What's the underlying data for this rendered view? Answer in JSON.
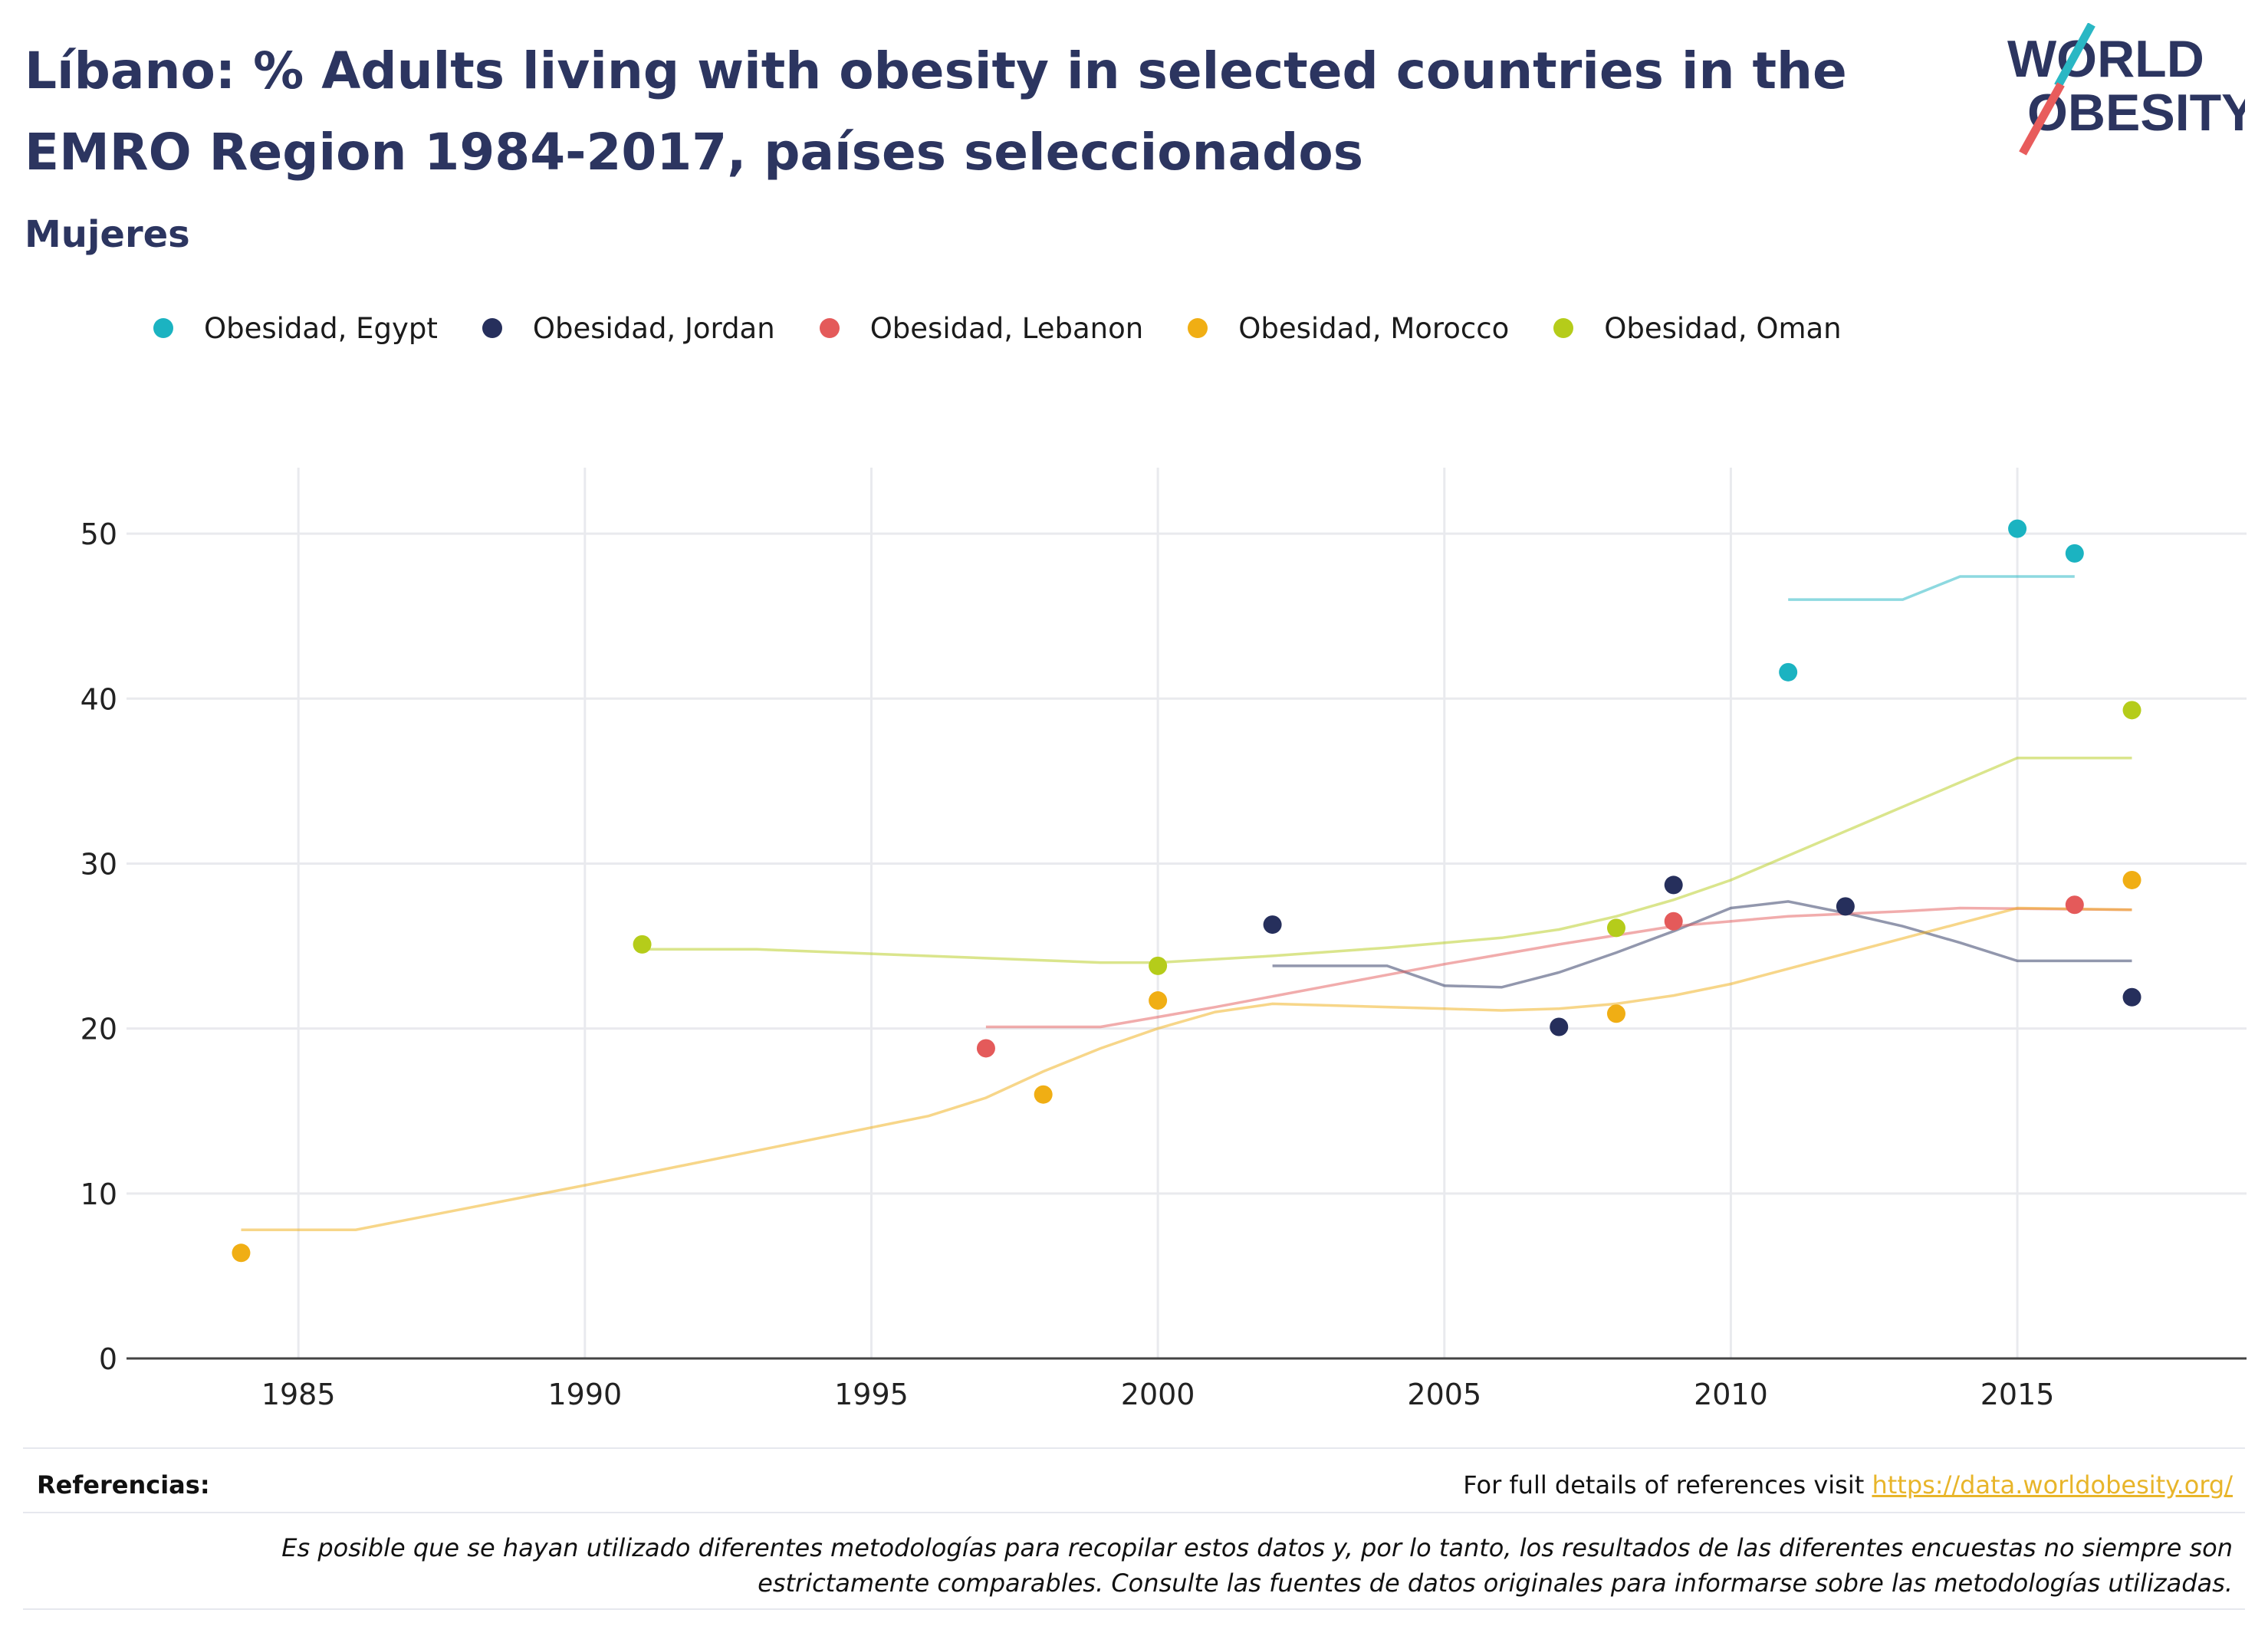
{
  "header": {
    "title": "Líbano: % Adults living with obesity in selected countries in the EMRO Region 1984-2017, países seleccionados",
    "subtitle": "Mujeres"
  },
  "logo": {
    "line1": "WORLD",
    "line2": "OBESITY",
    "slash_colors": [
      "#2ab7c4",
      "#e85c5c"
    ]
  },
  "footer": {
    "references_label": "Referencias:",
    "references_text": "For full details of references visit",
    "references_link": "https://data.worldobesity.org/",
    "note": "Es posible que se hayan utilizado diferentes metodologías para recopilar estos datos y, por lo tanto, los resultados de las diferentes encuestas no siempre son estrictamente comparables. Consulte las fuentes de datos originales para informarse sobre las metodologías utilizadas."
  },
  "chart_data": {
    "type": "scatter",
    "legend_position": "top",
    "grid": true,
    "xlim": [
      1982,
      2019
    ],
    "ylim": [
      0,
      54
    ],
    "x_ticks": [
      1985,
      1990,
      1995,
      2000,
      2005,
      2010,
      2015
    ],
    "y_ticks": [
      0,
      10,
      20,
      30,
      40,
      50
    ],
    "series": [
      {
        "name": "Obesidad, Egypt",
        "color": "#1bb3c1",
        "points": [
          [
            2011,
            41.6
          ],
          [
            2015,
            50.3
          ],
          [
            2016,
            48.8
          ]
        ],
        "trend": [
          [
            2011,
            46.0
          ],
          [
            2013,
            46.0
          ],
          [
            2014,
            47.4
          ],
          [
            2016,
            47.4
          ]
        ]
      },
      {
        "name": "Obesidad, Jordan",
        "color": "#262f5c",
        "points": [
          [
            2002,
            26.3
          ],
          [
            2007,
            20.1
          ],
          [
            2009,
            28.7
          ],
          [
            2012,
            27.4
          ],
          [
            2017,
            21.9
          ]
        ],
        "trend": [
          [
            2002,
            23.8
          ],
          [
            2004,
            23.8
          ],
          [
            2005,
            22.6
          ],
          [
            2006,
            22.5
          ],
          [
            2007,
            23.4
          ],
          [
            2008,
            24.6
          ],
          [
            2009,
            25.9
          ],
          [
            2010,
            27.3
          ],
          [
            2011,
            27.7
          ],
          [
            2012,
            27.0
          ],
          [
            2013,
            26.2
          ],
          [
            2014,
            25.2
          ],
          [
            2015,
            24.1
          ],
          [
            2017,
            24.1
          ]
        ]
      },
      {
        "name": "Obesidad, Lebanon",
        "color": "#e45a5a",
        "points": [
          [
            1997,
            18.8
          ],
          [
            2009,
            26.5
          ],
          [
            2016,
            27.5
          ]
        ],
        "trend": [
          [
            1997,
            20.1
          ],
          [
            1999,
            20.1
          ],
          [
            2001,
            21.3
          ],
          [
            2003,
            22.6
          ],
          [
            2005,
            23.9
          ],
          [
            2007,
            25.1
          ],
          [
            2009,
            26.2
          ],
          [
            2011,
            26.8
          ],
          [
            2013,
            27.1
          ],
          [
            2014,
            27.3
          ],
          [
            2017,
            27.2
          ]
        ]
      },
      {
        "name": "Obesidad, Morocco",
        "color": "#f0ae14",
        "points": [
          [
            1984,
            6.4
          ],
          [
            1998,
            16.0
          ],
          [
            2000,
            21.7
          ],
          [
            2008,
            20.9
          ],
          [
            2017,
            29.0
          ]
        ],
        "trend": [
          [
            1984,
            7.8
          ],
          [
            1986,
            7.8
          ],
          [
            1990,
            10.5
          ],
          [
            1996,
            14.7
          ],
          [
            1997,
            15.8
          ],
          [
            1998,
            17.4
          ],
          [
            1999,
            18.8
          ],
          [
            2000,
            20.0
          ],
          [
            2001,
            21.0
          ],
          [
            2002,
            21.5
          ],
          [
            2005,
            21.2
          ],
          [
            2006,
            21.1
          ],
          [
            2007,
            21.2
          ],
          [
            2008,
            21.5
          ],
          [
            2009,
            22.0
          ],
          [
            2010,
            22.7
          ],
          [
            2015,
            27.3
          ],
          [
            2017,
            27.2
          ]
        ]
      },
      {
        "name": "Obesidad, Oman",
        "color": "#b5cc1a",
        "points": [
          [
            1991,
            25.1
          ],
          [
            2000,
            23.8
          ],
          [
            2008,
            26.1
          ],
          [
            2017,
            39.3
          ]
        ],
        "trend": [
          [
            1991,
            24.8
          ],
          [
            1993,
            24.8
          ],
          [
            1999,
            24.0
          ],
          [
            2000,
            24.0
          ],
          [
            2001,
            24.2
          ],
          [
            2002,
            24.4
          ],
          [
            2004,
            24.9
          ],
          [
            2006,
            25.5
          ],
          [
            2007,
            26.0
          ],
          [
            2008,
            26.8
          ],
          [
            2009,
            27.8
          ],
          [
            2010,
            29.0
          ],
          [
            2015,
            36.4
          ],
          [
            2017,
            36.4
          ]
        ]
      }
    ]
  }
}
